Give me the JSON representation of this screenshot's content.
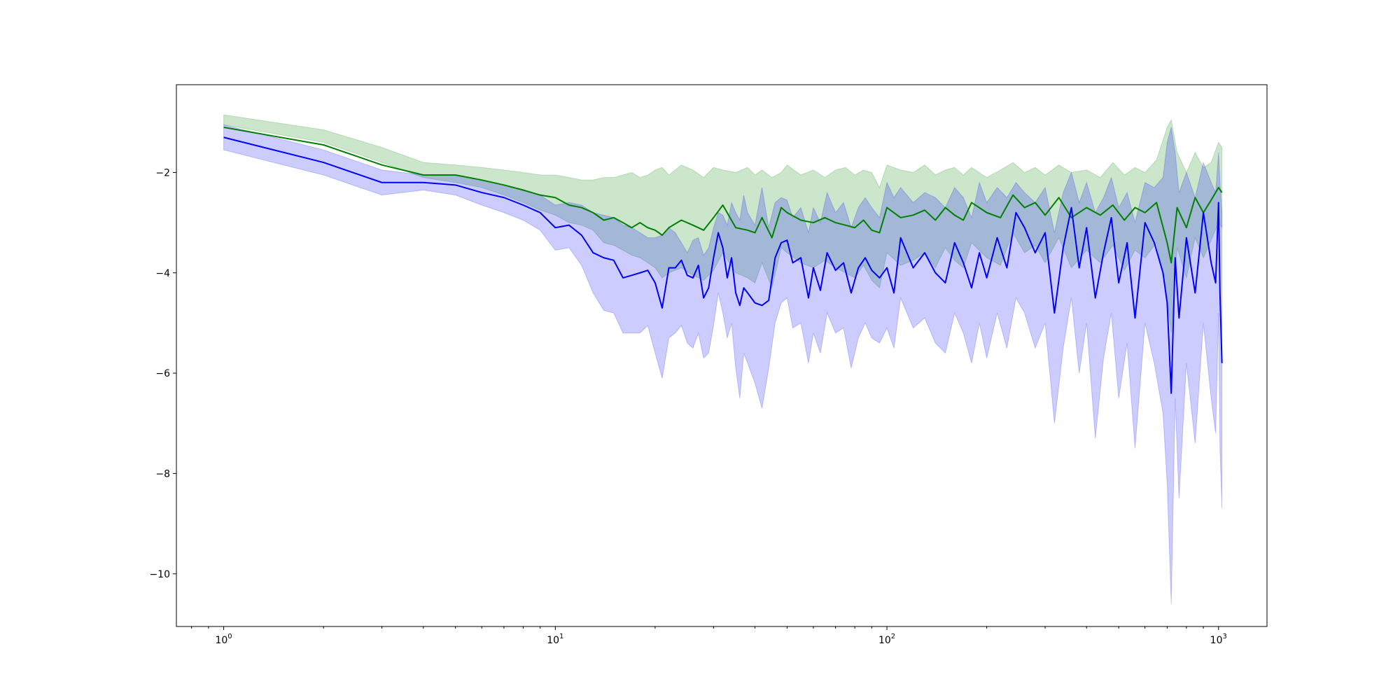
{
  "chart_data": {
    "type": "line",
    "title": "",
    "xlabel": "",
    "ylabel": "",
    "xscale": "log",
    "xlim": [
      0.72,
      1400
    ],
    "ylim": [
      -11.05,
      -0.25
    ],
    "grid": false,
    "legend": "none",
    "x_ticks": [
      {
        "value": 1,
        "base": "10",
        "exp": "0"
      },
      {
        "value": 10,
        "base": "10",
        "exp": "1"
      },
      {
        "value": 100,
        "base": "10",
        "exp": "2"
      },
      {
        "value": 1000,
        "base": "10",
        "exp": "3"
      }
    ],
    "y_ticks": [
      {
        "value": -2,
        "label": "−2"
      },
      {
        "value": -4,
        "label": "−4"
      },
      {
        "value": -6,
        "label": "−6"
      },
      {
        "value": -8,
        "label": "−8"
      },
      {
        "value": -10,
        "label": "−10"
      }
    ],
    "series": [
      {
        "color": "#008000",
        "band_color": "#008000",
        "band_opacity": 0.2,
        "x": [
          1,
          2,
          3,
          4,
          5,
          6,
          7,
          8,
          9,
          10,
          11,
          12,
          13,
          14,
          15,
          16,
          17,
          18,
          19,
          20,
          21,
          22,
          24,
          26,
          28,
          30,
          32,
          35,
          38,
          40,
          42,
          45,
          48,
          50,
          55,
          60,
          65,
          70,
          75,
          80,
          85,
          90,
          95,
          100,
          110,
          120,
          130,
          140,
          150,
          160,
          170,
          180,
          200,
          220,
          240,
          260,
          280,
          300,
          330,
          360,
          400,
          440,
          480,
          520,
          560,
          600,
          650,
          700,
          720,
          750,
          800,
          850,
          900,
          950,
          1000,
          1024
        ],
        "y": [
          -1.1,
          -1.45,
          -1.85,
          -2.05,
          -2.05,
          -2.15,
          -2.25,
          -2.35,
          -2.45,
          -2.5,
          -2.65,
          -2.7,
          -2.8,
          -2.95,
          -2.9,
          -3.0,
          -3.1,
          -3.0,
          -3.1,
          -3.15,
          -3.25,
          -3.1,
          -2.95,
          -3.05,
          -3.15,
          -2.9,
          -2.65,
          -3.1,
          -3.15,
          -3.2,
          -2.9,
          -3.3,
          -2.7,
          -2.8,
          -2.95,
          -3.0,
          -2.9,
          -3.0,
          -3.05,
          -3.1,
          -2.95,
          -3.15,
          -3.2,
          -2.7,
          -2.9,
          -2.85,
          -2.75,
          -2.95,
          -2.7,
          -2.85,
          -2.95,
          -2.6,
          -2.8,
          -2.9,
          -2.45,
          -2.7,
          -2.6,
          -2.85,
          -2.5,
          -2.9,
          -2.7,
          -2.85,
          -2.65,
          -2.95,
          -2.7,
          -2.8,
          -2.6,
          -3.4,
          -3.8,
          -2.7,
          -3.1,
          -2.5,
          -2.8,
          -2.55,
          -2.3,
          -2.4
        ],
        "lower": [
          -1.05,
          -1.4,
          -1.8,
          -2.1,
          -2.2,
          -2.3,
          -2.45,
          -2.6,
          -2.75,
          -2.85,
          -3.0,
          -3.05,
          -3.15,
          -3.4,
          -3.45,
          -3.55,
          -3.65,
          -3.7,
          -3.8,
          -3.9,
          -4.1,
          -4.0,
          -3.9,
          -4.05,
          -4.15,
          -3.95,
          -3.6,
          -4.0,
          -4.1,
          -4.2,
          -3.8,
          -4.3,
          -3.5,
          -3.6,
          -3.8,
          -3.9,
          -3.75,
          -3.9,
          -4.0,
          -4.1,
          -3.85,
          -4.15,
          -4.3,
          -3.6,
          -3.85,
          -3.75,
          -3.6,
          -3.9,
          -3.5,
          -3.75,
          -3.9,
          -3.4,
          -3.7,
          -3.85,
          -3.2,
          -3.6,
          -3.45,
          -3.8,
          -3.3,
          -3.9,
          -3.55,
          -3.8,
          -3.45,
          -3.95,
          -3.55,
          -3.7,
          -3.4,
          -4.5,
          -5.2,
          -3.5,
          -4.1,
          -3.3,
          -3.7,
          -3.35,
          -3.0,
          -3.1
        ],
        "upper": [
          -0.85,
          -1.15,
          -1.5,
          -1.8,
          -1.85,
          -1.9,
          -1.95,
          -2.0,
          -2.05,
          -2.05,
          -2.1,
          -2.15,
          -2.15,
          -2.1,
          -2.1,
          -2.05,
          -2.0,
          -2.1,
          -2.05,
          -1.95,
          -1.9,
          -2.05,
          -1.85,
          -1.95,
          -2.1,
          -1.9,
          -1.95,
          -2.0,
          -1.9,
          -2.05,
          -1.95,
          -2.1,
          -2.0,
          -1.85,
          -2.05,
          -1.95,
          -2.1,
          -1.95,
          -1.9,
          -2.05,
          -1.95,
          -2.0,
          -2.3,
          -1.85,
          -1.95,
          -2.0,
          -1.85,
          -2.05,
          -1.95,
          -1.9,
          -2.05,
          -1.9,
          -2.1,
          -1.95,
          -1.8,
          -2.0,
          -1.9,
          -2.05,
          -1.85,
          -2.0,
          -1.95,
          -2.1,
          -1.8,
          -2.05,
          -1.9,
          -2.0,
          -1.75,
          -1.1,
          -0.95,
          -1.6,
          -2.0,
          -1.6,
          -1.9,
          -1.8,
          -1.4,
          -1.5
        ]
      },
      {
        "color": "#0000ff",
        "band_color": "#0000ff",
        "band_opacity": 0.2,
        "x": [
          1,
          2,
          3,
          4,
          5,
          6,
          7,
          8,
          9,
          10,
          11,
          12,
          13,
          14,
          15,
          16,
          17,
          18,
          19,
          20,
          21,
          22,
          23,
          24,
          25,
          26,
          27,
          28,
          29,
          30,
          31,
          32,
          33,
          34,
          35,
          36,
          37,
          38,
          40,
          42,
          44,
          46,
          48,
          50,
          52,
          55,
          58,
          60,
          63,
          66,
          70,
          74,
          78,
          82,
          86,
          90,
          95,
          100,
          105,
          110,
          120,
          130,
          140,
          150,
          160,
          170,
          180,
          190,
          200,
          215,
          230,
          245,
          260,
          280,
          300,
          320,
          340,
          360,
          380,
          400,
          425,
          450,
          475,
          500,
          530,
          560,
          600,
          640,
          680,
          700,
          720,
          740,
          760,
          800,
          850,
          900,
          950,
          980,
          1000,
          1010,
          1024
        ],
        "y": [
          -1.3,
          -1.8,
          -2.2,
          -2.2,
          -2.25,
          -2.4,
          -2.5,
          -2.65,
          -2.8,
          -3.1,
          -3.05,
          -3.25,
          -3.6,
          -3.7,
          -3.75,
          -4.1,
          -4.05,
          -4.0,
          -3.95,
          -4.2,
          -4.7,
          -3.9,
          -3.9,
          -3.75,
          -4.05,
          -4.1,
          -3.85,
          -4.5,
          -4.3,
          -3.7,
          -3.2,
          -3.5,
          -4.1,
          -3.7,
          -4.4,
          -4.65,
          -4.3,
          -4.4,
          -4.6,
          -4.65,
          -4.55,
          -3.7,
          -3.4,
          -3.35,
          -3.8,
          -3.7,
          -4.5,
          -3.9,
          -4.35,
          -3.6,
          -3.95,
          -3.8,
          -4.4,
          -3.9,
          -3.7,
          -3.95,
          -4.1,
          -3.9,
          -4.4,
          -3.3,
          -3.9,
          -3.6,
          -4.0,
          -4.2,
          -3.4,
          -3.8,
          -4.3,
          -3.6,
          -4.1,
          -3.3,
          -3.9,
          -2.8,
          -3.1,
          -3.6,
          -3.2,
          -4.8,
          -3.5,
          -2.7,
          -3.9,
          -3.1,
          -4.5,
          -3.6,
          -2.9,
          -4.2,
          -3.4,
          -4.9,
          -3.0,
          -3.4,
          -4.0,
          -4.6,
          -6.4,
          -3.7,
          -4.9,
          -3.3,
          -4.4,
          -2.8,
          -3.8,
          -4.2,
          -2.6,
          -4.4,
          -5.8
        ],
        "lower": [
          -1.55,
          -2.05,
          -2.45,
          -2.35,
          -2.45,
          -2.65,
          -2.8,
          -2.95,
          -3.15,
          -3.55,
          -3.5,
          -3.85,
          -4.4,
          -4.75,
          -4.8,
          -5.2,
          -5.2,
          -5.2,
          -5.05,
          -5.6,
          -6.1,
          -5.3,
          -5.2,
          -5.05,
          -5.4,
          -5.5,
          -5.2,
          -5.7,
          -5.6,
          -5.05,
          -4.4,
          -4.8,
          -5.3,
          -5.0,
          -5.9,
          -6.5,
          -5.6,
          -5.8,
          -6.2,
          -6.7,
          -5.9,
          -5.0,
          -4.6,
          -4.5,
          -5.1,
          -5.0,
          -5.8,
          -5.2,
          -5.6,
          -4.8,
          -5.2,
          -5.1,
          -5.9,
          -5.3,
          -5.0,
          -5.3,
          -5.4,
          -5.1,
          -5.5,
          -4.5,
          -5.1,
          -4.9,
          -5.4,
          -5.6,
          -4.8,
          -5.2,
          -5.8,
          -5.0,
          -5.7,
          -4.8,
          -5.5,
          -4.5,
          -4.8,
          -5.5,
          -5.0,
          -7.0,
          -5.5,
          -4.5,
          -6.0,
          -5.0,
          -7.3,
          -5.7,
          -4.8,
          -6.5,
          -5.4,
          -7.5,
          -5.0,
          -5.8,
          -6.8,
          -8.2,
          -10.6,
          -6.5,
          -8.5,
          -5.8,
          -7.4,
          -5.0,
          -6.5,
          -7.2,
          -4.8,
          -7.5,
          -8.7
        ],
        "upper": [
          -1.05,
          -1.55,
          -1.95,
          -2.05,
          -2.05,
          -2.15,
          -2.25,
          -2.35,
          -2.45,
          -2.65,
          -2.6,
          -2.65,
          -2.8,
          -2.85,
          -2.9,
          -3.05,
          -3.1,
          -3.2,
          -3.3,
          -3.3,
          -3.25,
          -3.1,
          -3.2,
          -3.4,
          -3.6,
          -3.35,
          -3.3,
          -3.65,
          -3.5,
          -3.1,
          -2.8,
          -2.85,
          -3.05,
          -2.6,
          -2.8,
          -2.95,
          -2.45,
          -2.8,
          -3.05,
          -2.3,
          -3.1,
          -2.6,
          -2.5,
          -2.55,
          -2.9,
          -2.7,
          -3.2,
          -2.7,
          -3.0,
          -2.4,
          -2.8,
          -2.6,
          -3.1,
          -2.7,
          -2.5,
          -2.7,
          -2.9,
          -2.2,
          -2.5,
          -2.3,
          -2.6,
          -2.4,
          -2.5,
          -2.7,
          -2.3,
          -2.5,
          -2.9,
          -2.2,
          -2.6,
          -2.3,
          -2.5,
          -2.2,
          -2.4,
          -2.6,
          -2.3,
          -3.2,
          -2.4,
          -2.0,
          -2.6,
          -2.2,
          -2.8,
          -2.5,
          -2.1,
          -2.7,
          -2.4,
          -3.0,
          -2.2,
          -2.3,
          -2.1,
          -1.4,
          -1.1,
          -1.6,
          -2.4,
          -2.0,
          -2.5,
          -1.8,
          -2.2,
          -2.4,
          -1.6,
          -2.2,
          -2.8
        ]
      }
    ]
  }
}
